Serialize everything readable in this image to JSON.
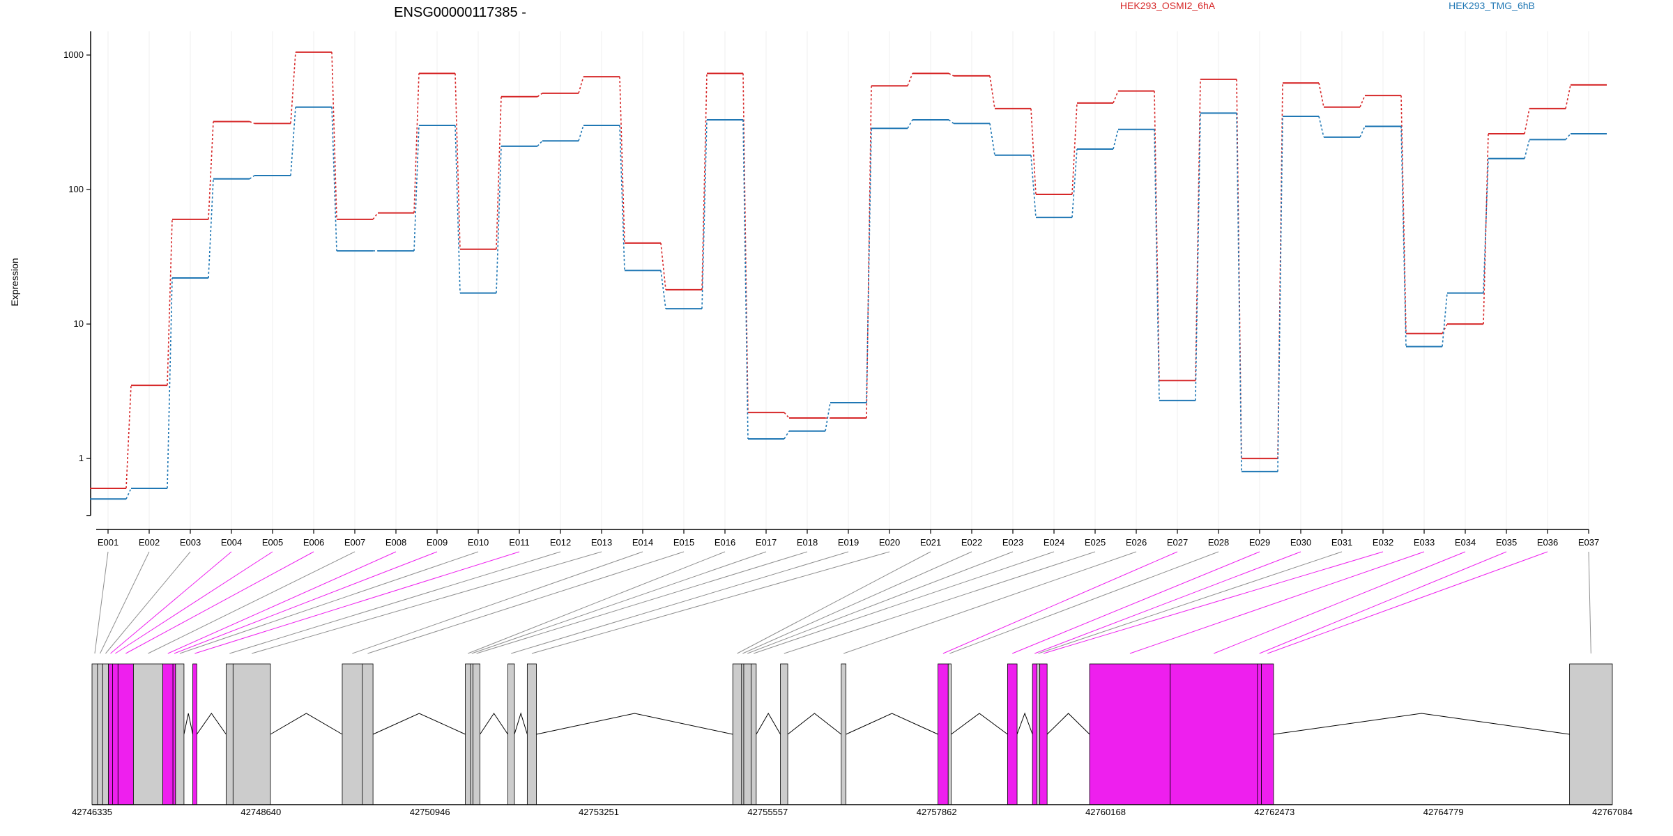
{
  "chart_data": {
    "type": "line",
    "title": "ENSG00000117385 -",
    "ylabel": "Expression",
    "yscale": "log",
    "ylim": [
      0.4,
      1500
    ],
    "yticks": [
      "1",
      "10",
      "100",
      "1000"
    ],
    "categories": [
      "E001",
      "E002",
      "E003",
      "E004",
      "E005",
      "E006",
      "E007",
      "E008",
      "E009",
      "E010",
      "E011",
      "E012",
      "E013",
      "E014",
      "E015",
      "E016",
      "E017",
      "E018",
      "E019",
      "E020",
      "E021",
      "E022",
      "E023",
      "E024",
      "E025",
      "E026",
      "E027",
      "E028",
      "E029",
      "E030",
      "E031",
      "E032",
      "E033",
      "E034",
      "E035",
      "E036",
      "E037"
    ],
    "series": [
      {
        "name": "HEK293_OSMI2_6hA",
        "color": "#d62728",
        "values": [
          0.6,
          3.5,
          60,
          320,
          310,
          1050,
          60,
          67,
          730,
          36,
          490,
          520,
          690,
          40,
          18,
          730,
          2.2,
          2.0,
          2.0,
          590,
          730,
          700,
          400,
          92,
          440,
          540,
          3.8,
          660,
          1.0,
          620,
          410,
          500,
          8.5,
          10,
          260,
          400,
          600
        ]
      },
      {
        "name": "HEK293_TMG_6hB",
        "color": "#1f77b4",
        "values": [
          0.5,
          0.6,
          22,
          120,
          127,
          410,
          35,
          35,
          300,
          17,
          210,
          230,
          300,
          25,
          13,
          330,
          1.4,
          1.6,
          2.6,
          285,
          330,
          310,
          180,
          62,
          200,
          280,
          2.7,
          370,
          0.8,
          350,
          245,
          295,
          6.8,
          17,
          170,
          235,
          260
        ]
      }
    ]
  },
  "gene_model": {
    "coordinate_labels": [
      "42746335",
      "42748640",
      "42750946",
      "42753251",
      "42755557",
      "42757862",
      "42760168",
      "42762473",
      "42764779",
      "42767084"
    ],
    "coordinate_range": [
      42746335,
      42767084
    ],
    "colors": {
      "differential": "#ee1fee",
      "normal": "#cccccc"
    },
    "exons": [
      {
        "id": "E001",
        "start": 42746335,
        "end": 42746410,
        "differential": false
      },
      {
        "id": "E002",
        "start": 42746410,
        "end": 42746480,
        "differential": false
      },
      {
        "id": "E003",
        "start": 42746480,
        "end": 42746560,
        "differential": false
      },
      {
        "id": "E004",
        "start": 42746560,
        "end": 42746615,
        "differential": true
      },
      {
        "id": "E005",
        "start": 42746615,
        "end": 42746690,
        "differential": true
      },
      {
        "id": "E006",
        "start": 42746690,
        "end": 42746900,
        "differential": true
      },
      {
        "id": "E007",
        "start": 42746900,
        "end": 42747300,
        "differential": false
      },
      {
        "id": "E008",
        "start": 42747300,
        "end": 42747440,
        "differential": true
      },
      {
        "id": "E009",
        "start": 42747440,
        "end": 42747475,
        "differential": true
      },
      {
        "id": "E010",
        "start": 42747475,
        "end": 42747590,
        "differential": false
      },
      {
        "id": "E011",
        "start": 42747710,
        "end": 42747765,
        "differential": true
      },
      {
        "id": "E012",
        "start": 42748165,
        "end": 42748260,
        "differential": false
      },
      {
        "id": "E013",
        "start": 42748260,
        "end": 42748770,
        "differential": false
      },
      {
        "id": "E014",
        "start": 42749750,
        "end": 42750025,
        "differential": false
      },
      {
        "id": "E015",
        "start": 42750025,
        "end": 42750170,
        "differential": false
      },
      {
        "id": "E016",
        "start": 42751430,
        "end": 42751500,
        "differential": false
      },
      {
        "id": "E017",
        "start": 42751500,
        "end": 42751535,
        "differential": false
      },
      {
        "id": "E018",
        "start": 42751535,
        "end": 42751630,
        "differential": false
      },
      {
        "id": "E019",
        "start": 42752010,
        "end": 42752100,
        "differential": false
      },
      {
        "id": "E020",
        "start": 42752275,
        "end": 42752400,
        "differential": false
      },
      {
        "id": "E021",
        "start": 42755080,
        "end": 42755200,
        "differential": false
      },
      {
        "id": "E022",
        "start": 42755200,
        "end": 42755230,
        "differential": false
      },
      {
        "id": "E023",
        "start": 42755230,
        "end": 42755330,
        "differential": false
      },
      {
        "id": "E024",
        "start": 42755330,
        "end": 42755400,
        "differential": false
      },
      {
        "id": "E025",
        "start": 42755730,
        "end": 42755830,
        "differential": false
      },
      {
        "id": "E026",
        "start": 42756560,
        "end": 42756625,
        "differential": false
      },
      {
        "id": "E027",
        "start": 42757880,
        "end": 42758020,
        "differential": true
      },
      {
        "id": "E028",
        "start": 42758020,
        "end": 42758060,
        "differential": false
      },
      {
        "id": "E029",
        "start": 42758830,
        "end": 42758960,
        "differential": true
      },
      {
        "id": "E030",
        "start": 42759170,
        "end": 42759230,
        "differential": true
      },
      {
        "id": "E031",
        "start": 42759230,
        "end": 42759270,
        "differential": false
      },
      {
        "id": "E032",
        "start": 42759270,
        "end": 42759370,
        "differential": true
      },
      {
        "id": "E033",
        "start": 42759950,
        "end": 42761050,
        "differential": true
      },
      {
        "id": "E034",
        "start": 42761050,
        "end": 42762240,
        "differential": true
      },
      {
        "id": "E035",
        "start": 42762240,
        "end": 42762295,
        "differential": true
      },
      {
        "id": "E036",
        "start": 42762295,
        "end": 42762460,
        "differential": true
      },
      {
        "id": "E037",
        "start": 42766500,
        "end": 42767084,
        "differential": false
      }
    ]
  }
}
